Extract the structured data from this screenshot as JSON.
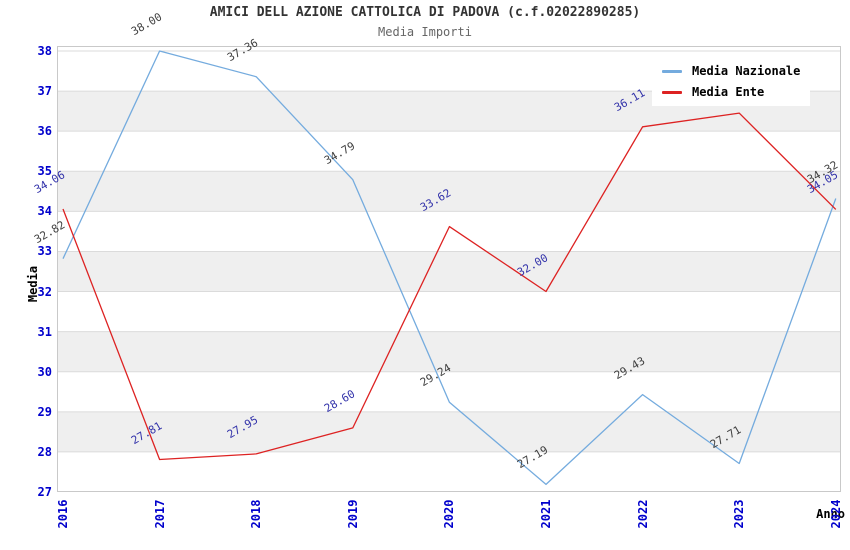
{
  "chart_data": {
    "type": "line",
    "title": "AMICI DELL AZIONE CATTOLICA DI PADOVA (c.f.02022890285)",
    "subtitle": "Media Importi",
    "xlabel": "Anno",
    "ylabel": "Media",
    "x": [
      2016,
      2017,
      2018,
      2019,
      2020,
      2021,
      2022,
      2023,
      2024
    ],
    "x_tick_labels": [
      "2016",
      "2017",
      "2018",
      "2019",
      "2020",
      "2021",
      "2022",
      "2023",
      "2024"
    ],
    "ylim": [
      27,
      38
    ],
    "y_ticks": [
      27,
      28,
      29,
      30,
      31,
      32,
      33,
      34,
      35,
      36,
      37,
      38
    ],
    "grid": "horizontal gridlines with alternating white/gray bands",
    "legend_position": "top-right inside plot",
    "series": [
      {
        "name": "Media Nazionale",
        "line_color": "#74ABDE",
        "label_color": "#404040",
        "values": [
          32.82,
          38.0,
          37.36,
          34.79,
          29.24,
          27.19,
          29.43,
          27.71,
          34.32
        ],
        "point_labels": [
          "32.82",
          "38.00",
          "37.36",
          "34.79",
          "29.24",
          "27.19",
          "29.43",
          "27.71",
          "34.32"
        ]
      },
      {
        "name": "Media Ente",
        "line_color": "#DD2222",
        "label_color": "#3333AA",
        "values": [
          34.06,
          27.81,
          27.95,
          28.6,
          33.62,
          32.0,
          36.11,
          36.45,
          34.05
        ],
        "point_labels": [
          "34.06",
          "27.81",
          "27.95",
          "28.60",
          "33.62",
          "32.00",
          "36.11",
          "36.45",
          "34.05"
        ],
        "note": "2023 point label is hidden behind the legend box"
      }
    ],
    "colors": {
      "tick_label": "#0000CC",
      "band_gray": "#EFEFEF",
      "grid_line": "#DBDBDB",
      "plot_border": "#C9C9C9",
      "background": "#FFFFFF"
    }
  }
}
